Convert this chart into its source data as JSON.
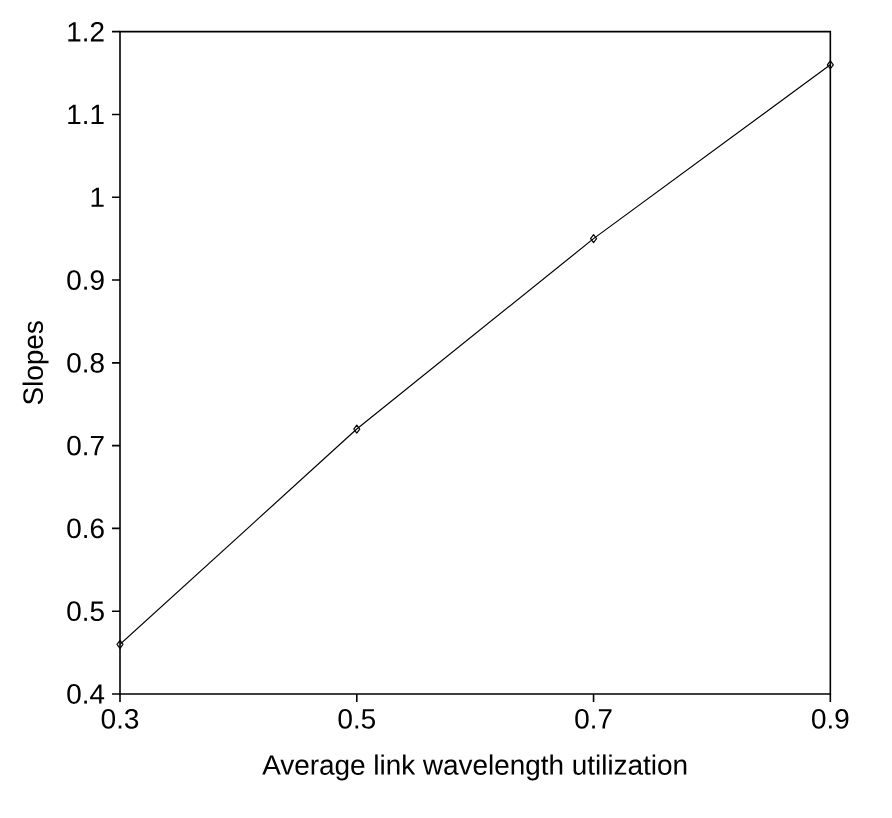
{
  "chart_data": {
    "type": "line",
    "xlabel": "Average link wavelength utilization",
    "ylabel": "Slopes",
    "x": [
      0.3,
      0.5,
      0.7,
      0.9
    ],
    "series": [
      {
        "color": "#000000",
        "values": [
          0.46,
          0.72,
          0.95,
          1.16
        ]
      }
    ],
    "xlim": [
      0.3,
      0.9
    ],
    "xticks": [
      0.3,
      0.5,
      0.7,
      0.9
    ],
    "ylim": [
      0.4,
      1.2
    ],
    "yticks": [
      0.4,
      0.5,
      0.6,
      0.7,
      0.8,
      0.9,
      1,
      1.1,
      1.2
    ],
    "grid": false,
    "marker": "diamond",
    "line_style": "solid"
  }
}
